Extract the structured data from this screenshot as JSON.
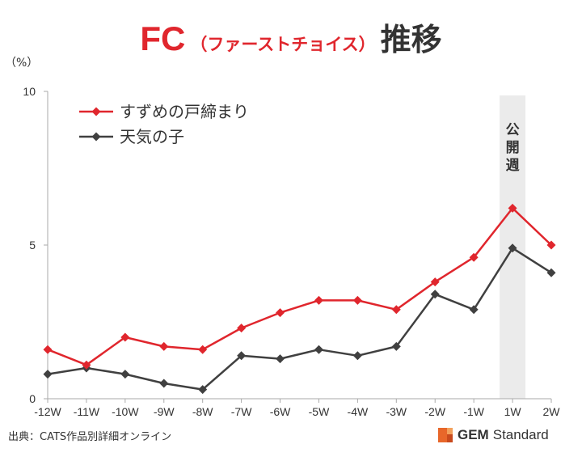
{
  "title": {
    "fc": "FC",
    "paren": "（ファーストチョイス）",
    "main": "推移"
  },
  "source": "出典：CATS作品別詳細オンライン",
  "brand": {
    "gem": "GEM",
    "standard": "Standard"
  },
  "colors": {
    "suzume": "#e0262d",
    "tenki": "#404040",
    "highlight": "#ebebeb",
    "axis": "#aaaaaa"
  },
  "chart_data": {
    "type": "line",
    "ylabel": "（%）",
    "ylim": [
      0,
      10
    ],
    "yticks": [
      0,
      5,
      10
    ],
    "categories": [
      "-12W",
      "-11W",
      "-10W",
      "-9W",
      "-8W",
      "-7W",
      "-6W",
      "-5W",
      "-4W",
      "-3W",
      "-2W",
      "-1W",
      "1W",
      "2W"
    ],
    "series": [
      {
        "name": "すずめの戸締まり",
        "color": "#e0262d",
        "values": [
          1.6,
          1.1,
          2.0,
          1.7,
          1.6,
          2.3,
          2.8,
          3.2,
          3.2,
          2.9,
          3.8,
          4.6,
          6.2,
          5.0
        ]
      },
      {
        "name": "天気の子",
        "color": "#404040",
        "values": [
          0.8,
          1.0,
          0.8,
          0.5,
          0.3,
          1.4,
          1.3,
          1.6,
          1.4,
          1.7,
          3.4,
          2.9,
          4.9,
          4.1
        ]
      }
    ],
    "highlight": {
      "category": "1W",
      "label": [
        "公",
        "開",
        "週"
      ]
    },
    "legend": "top-left",
    "grid": false
  }
}
